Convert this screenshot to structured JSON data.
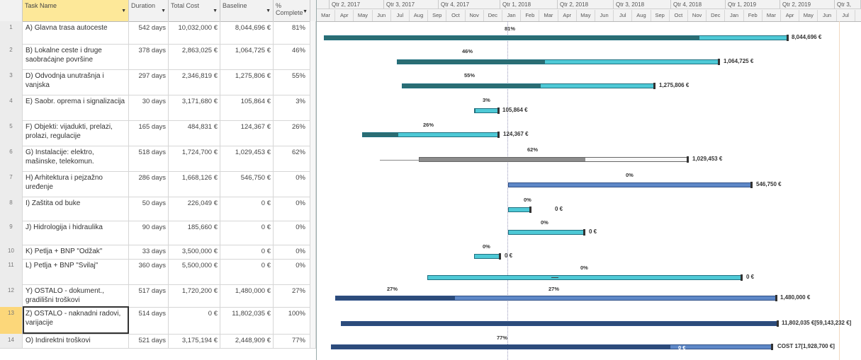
{
  "columns": {
    "task_name": "Task Name",
    "duration": "Duration",
    "total_cost": "Total Cost",
    "baseline": "Baseline",
    "complete": "% Complete"
  },
  "timeline": {
    "quarters": [
      "",
      "Qtr 2, 2017",
      "Qtr 3, 2017",
      "Qtr 4, 2017",
      "Qtr 1, 2018",
      "Qtr 2, 2018",
      "Qtr 3, 2018",
      "Qtr 4, 2018",
      "Qtr 1, 2019",
      "Qtr 2, 2019",
      "Qtr 3,"
    ],
    "months": [
      "Mar",
      "Apr",
      "May",
      "Jun",
      "Jul",
      "Aug",
      "Sep",
      "Oct",
      "Nov",
      "Dec",
      "Jan",
      "Feb",
      "Mar",
      "Apr",
      "May",
      "Jun",
      "Jul",
      "Aug",
      "Sep",
      "Oct",
      "Nov",
      "Dec",
      "Jan",
      "Feb",
      "Mar",
      "Apr",
      "May",
      "Jun",
      "Jul"
    ]
  },
  "tasks": [
    {
      "id": "1",
      "name": "A) Glavna trasa autoceste",
      "duration": "542 days",
      "cost": "10,032,000 €",
      "baseline": "8,044,696 €",
      "pct": "81%",
      "bar_pct": "81%",
      "bar_label": "8,044,696 €"
    },
    {
      "id": "2",
      "name": "B) Lokalne ceste i druge saobraćajne površine",
      "duration": "378 days",
      "cost": "2,863,025 €",
      "baseline": "1,064,725 €",
      "pct": "46%",
      "bar_pct": "46%",
      "bar_label": "1,064,725 €"
    },
    {
      "id": "3",
      "name": "D) Odvodnja unutrašnja i vanjska",
      "duration": "297 days",
      "cost": "2,346,819 €",
      "baseline": "1,275,806 €",
      "pct": "55%",
      "bar_pct": "55%",
      "bar_label": "1,275,806 €"
    },
    {
      "id": "4",
      "name": "E) Saobr. oprema i signalizacija",
      "duration": "30 days",
      "cost": "3,171,680 €",
      "baseline": "105,864 €",
      "pct": "3%",
      "bar_pct": "3%",
      "bar_label": "105,864 €"
    },
    {
      "id": "5",
      "name": "F) Objekti: vijadukti, prelazi, prolazi, regulacije",
      "duration": "165 days",
      "cost": "484,831 €",
      "baseline": "124,367 €",
      "pct": "26%",
      "bar_pct": "26%",
      "bar_label": "124,367 €"
    },
    {
      "id": "6",
      "name": "G) Instalacije: elektro, mašinske, telekomun.",
      "duration": "518 days",
      "cost": "1,724,700 €",
      "baseline": "1,029,453 €",
      "pct": "62%",
      "bar_pct": "62%",
      "bar_label": "1,029,453 €"
    },
    {
      "id": "7",
      "name": "H) Arhitektura i pejzažno uređenje",
      "duration": "286 days",
      "cost": "1,668,126 €",
      "baseline": "546,750 €",
      "pct": "0%",
      "bar_pct": "0%",
      "bar_label": "546,750 €"
    },
    {
      "id": "8",
      "name": "I) Zaštita od buke",
      "duration": "50 days",
      "cost": "226,049 €",
      "baseline": "0 €",
      "pct": "0%",
      "bar_pct": "0%",
      "bar_label": "0 €"
    },
    {
      "id": "9",
      "name": "J) Hidrologija i hidraulika",
      "duration": "90 days",
      "cost": "185,660 €",
      "baseline": "0 €",
      "pct": "0%",
      "bar_pct": "0%",
      "bar_label": "0 €"
    },
    {
      "id": "10",
      "name": "K) Petlja + BNP \"Odžak\"",
      "duration": "33 days",
      "cost": "3,500,000 €",
      "baseline": "0 €",
      "pct": "0%",
      "bar_pct": "0%",
      "bar_label": "0 €"
    },
    {
      "id": "11",
      "name": "L) Petlja + BNP \"Svilaj\"",
      "duration": "360 days",
      "cost": "5,500,000 €",
      "baseline": "0 €",
      "pct": "0%",
      "bar_pct": "0%",
      "bar_label": "0 €"
    },
    {
      "id": "12",
      "name": "Y) OSTALO - dokument., gradilišni troškovi",
      "duration": "517 days",
      "cost": "1,720,200 €",
      "baseline": "1,480,000 €",
      "pct": "27%",
      "bar_pct": "27%",
      "bar_pct_2": "27%",
      "bar_label": "1,480,000 €"
    },
    {
      "id": "13",
      "name": "Z) OSTALO - naknadni radovi, varijacije",
      "duration": "514 days",
      "cost": "0 €",
      "baseline": "11,802,035 €",
      "pct": "100%",
      "bar_label": "11,802,035 €[59,143,232 €]"
    },
    {
      "id": "14",
      "name": "O) Indirektni troškovi",
      "duration": "521 days",
      "cost": "3,175,194 €",
      "baseline": "2,448,909 €",
      "pct": "77%",
      "bar_pct": "77%",
      "bar_label": "COST 17[1,928,700 €]",
      "inner_label": "0 €"
    }
  ]
}
